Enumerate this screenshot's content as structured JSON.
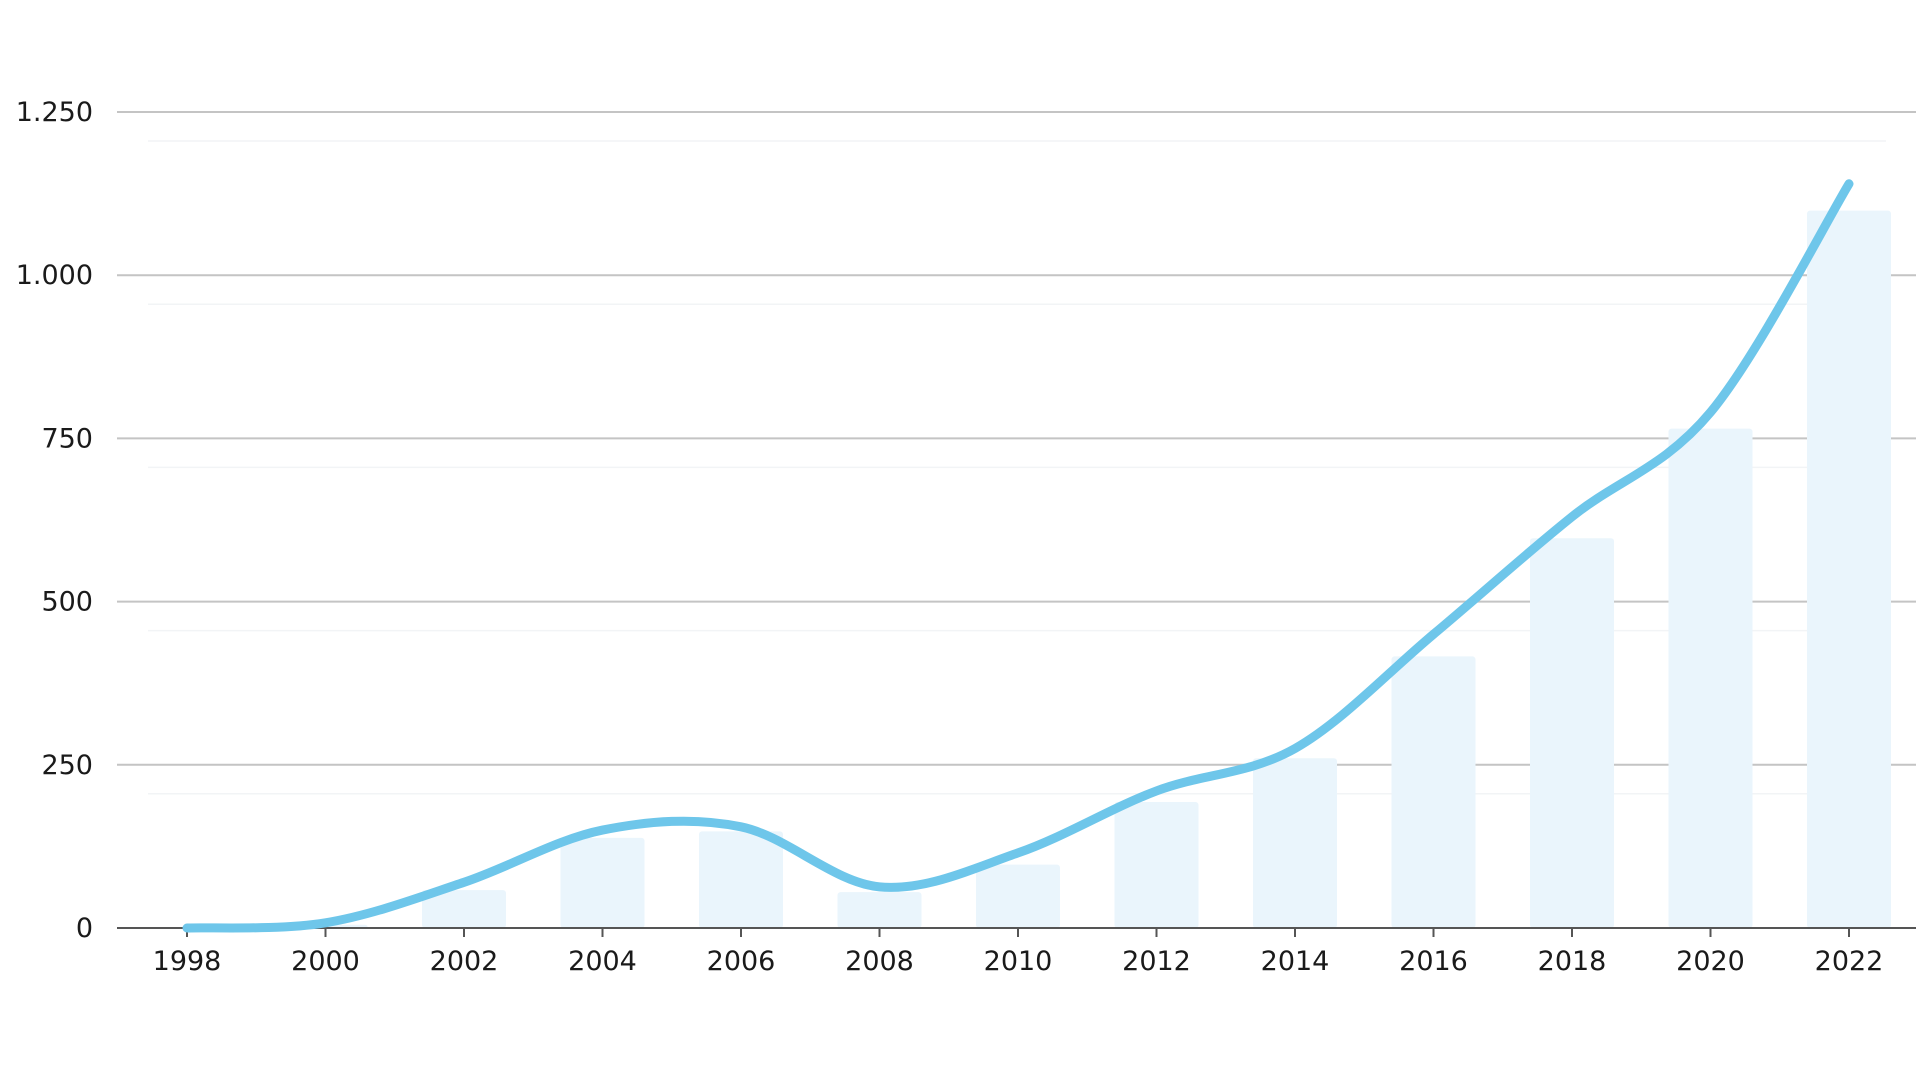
{
  "chart_data": {
    "type": "bar",
    "title": "",
    "xlabel": "",
    "ylabel": "",
    "ylim": [
      0,
      1250
    ],
    "yticks": [
      0,
      250,
      500,
      750,
      1000,
      1250
    ],
    "ytick_labels": [
      "0",
      "250",
      "500",
      "750",
      "1.000",
      "1.250"
    ],
    "categories": [
      "1998",
      "2000",
      "2002",
      "2004",
      "2006",
      "2008",
      "2010",
      "2012",
      "2014",
      "2016",
      "2018",
      "2020",
      "2022"
    ],
    "grid": true,
    "series": [
      {
        "type": "bar",
        "color": "#eaf5fc",
        "values": [
          0,
          5,
          58,
          138,
          148,
          55,
          97,
          193,
          260,
          416,
          597,
          765,
          1099
        ]
      },
      {
        "type": "line",
        "smooth": true,
        "color": "#6ec6ea",
        "values": [
          0,
          8,
          70,
          150,
          155,
          63,
          115,
          210,
          275,
          450,
          630,
          790,
          1140
        ]
      }
    ]
  }
}
